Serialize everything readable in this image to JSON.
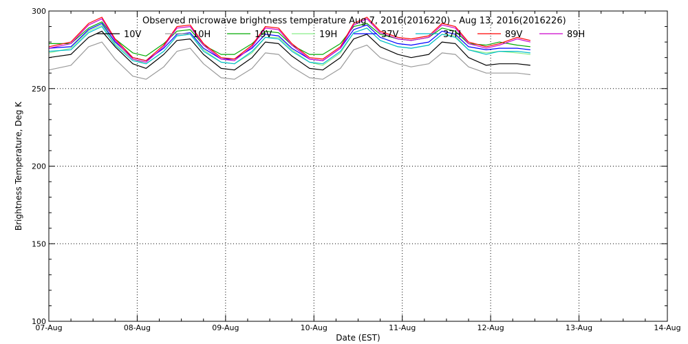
{
  "chart_data": {
    "type": "line",
    "title": "Observed microwave brightness temperature Aug 7, 2016(2016220) - Aug 13, 2016(2016226)",
    "xlabel": "Date (EST)",
    "ylabel": "Brightness Temperature, Deg K",
    "xlim": [
      0,
      7
    ],
    "ylim": [
      100,
      300
    ],
    "x_ticks": [
      0,
      1,
      2,
      3,
      4,
      5,
      6,
      7
    ],
    "x_tick_labels": [
      "07-Aug",
      "08-Aug",
      "09-Aug",
      "10-Aug",
      "11-Aug",
      "12-Aug",
      "13-Aug",
      "14-Aug"
    ],
    "y_ticks": [
      100,
      150,
      200,
      250,
      300
    ],
    "y_tick_labels": [
      "100",
      "150",
      "200",
      "250",
      "300"
    ],
    "grid": true,
    "x": [
      0.0,
      0.25,
      0.45,
      0.6,
      0.75,
      0.95,
      1.1,
      1.3,
      1.45,
      1.6,
      1.75,
      1.95,
      2.1,
      2.3,
      2.45,
      2.6,
      2.75,
      2.95,
      3.1,
      3.3,
      3.45,
      3.6,
      3.75,
      3.95,
      4.1,
      4.3,
      4.45,
      4.6,
      4.75,
      4.95,
      5.1,
      5.3,
      5.45
    ],
    "series": [
      {
        "name": "10V",
        "color": "#000000",
        "values": [
          270,
          272,
          283,
          287,
          277,
          266,
          263,
          272,
          281,
          282,
          272,
          263,
          262,
          270,
          280,
          279,
          271,
          263,
          262,
          270,
          282,
          285,
          277,
          272,
          270,
          272,
          280,
          279,
          270,
          265,
          266,
          266,
          265
        ]
      },
      {
        "name": "10H",
        "color": "#999999",
        "values": [
          262,
          265,
          277,
          280,
          269,
          258,
          256,
          264,
          274,
          276,
          266,
          257,
          256,
          263,
          273,
          272,
          264,
          257,
          256,
          263,
          275,
          278,
          270,
          266,
          264,
          266,
          273,
          272,
          264,
          260,
          260,
          260,
          259
        ]
      },
      {
        "name": "19V",
        "color": "#00aa00",
        "values": [
          279,
          279,
          289,
          293,
          282,
          273,
          271,
          279,
          287,
          288,
          278,
          272,
          272,
          279,
          287,
          286,
          278,
          272,
          272,
          279,
          290,
          292,
          285,
          282,
          281,
          283,
          289,
          287,
          279,
          278,
          280,
          278,
          277
        ]
      },
      {
        "name": "19H",
        "color": "#88ee88",
        "values": [
          273,
          276,
          287,
          291,
          279,
          269,
          266,
          274,
          284,
          285,
          275,
          267,
          266,
          273,
          283,
          283,
          275,
          267,
          265,
          273,
          286,
          289,
          281,
          277,
          276,
          278,
          285,
          284,
          275,
          273,
          274,
          273,
          272
        ]
      },
      {
        "name": "37V",
        "color": "#0000ff",
        "values": [
          276,
          277,
          288,
          292,
          280,
          270,
          268,
          276,
          285,
          286,
          276,
          269,
          269,
          276,
          285,
          284,
          276,
          269,
          268,
          276,
          288,
          291,
          283,
          279,
          278,
          280,
          287,
          285,
          277,
          275,
          276,
          276,
          275
        ]
      },
      {
        "name": "37H",
        "color": "#00bbcc",
        "values": [
          274,
          275,
          286,
          290,
          278,
          268,
          266,
          274,
          284,
          285,
          274,
          267,
          266,
          274,
          283,
          282,
          274,
          267,
          266,
          274,
          286,
          289,
          281,
          277,
          276,
          278,
          285,
          283,
          275,
          272,
          274,
          274,
          273
        ]
      },
      {
        "name": "89V",
        "color": "#ff0000",
        "values": [
          277,
          280,
          292,
          296,
          282,
          270,
          268,
          278,
          290,
          291,
          279,
          270,
          269,
          278,
          290,
          289,
          279,
          270,
          269,
          277,
          292,
          296,
          287,
          283,
          282,
          284,
          292,
          290,
          280,
          277,
          279,
          283,
          281
        ]
      },
      {
        "name": "89H",
        "color": "#cc00cc",
        "values": [
          276,
          279,
          291,
          295,
          281,
          269,
          267,
          277,
          289,
          290,
          278,
          269,
          268,
          277,
          289,
          288,
          278,
          269,
          268,
          276,
          291,
          295,
          286,
          282,
          281,
          283,
          291,
          289,
          279,
          276,
          278,
          282,
          280
        ]
      }
    ]
  }
}
